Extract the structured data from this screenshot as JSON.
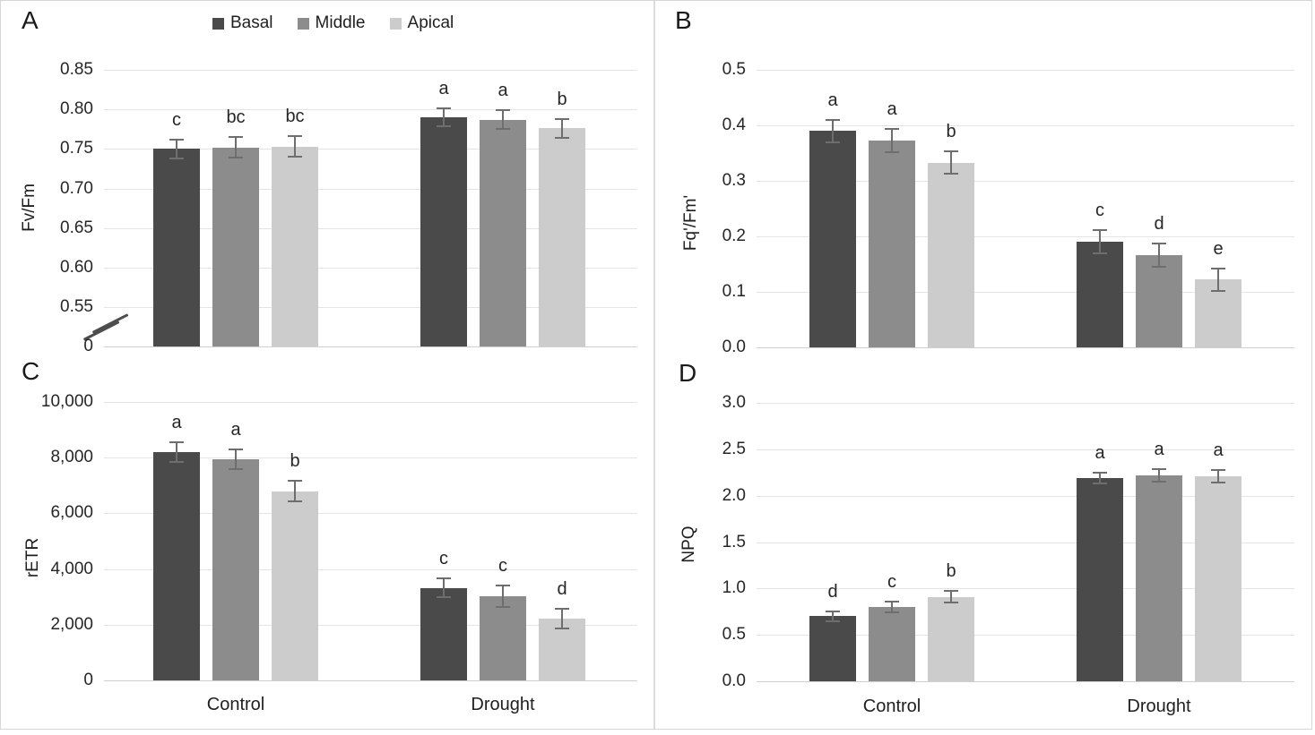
{
  "figure": {
    "legend": {
      "position": "top",
      "items": [
        {
          "label": "Basal",
          "color": "#4a4a4a"
        },
        {
          "label": "Middle",
          "color": "#8c8c8c"
        },
        {
          "label": "Apical",
          "color": "#cccccc"
        }
      ]
    },
    "colors": {
      "gridline": "#e4e4e4",
      "axis_line": "#cfcfcf",
      "error_bar": "#6e6e6e",
      "text": "#1f1f1f",
      "panel_border": "#d6d6d6"
    }
  },
  "chart_data": [
    {
      "id": "A",
      "panel_label": "A",
      "type": "bar",
      "ylabel": "Fv/Fm",
      "categories": [
        "Control",
        "Drought"
      ],
      "show_category_labels": false,
      "axis_break": true,
      "ylim": [
        0.55,
        0.87
      ],
      "yticks": [
        0.85,
        0.8,
        0.75,
        0.7,
        0.65,
        0.6,
        0.55
      ],
      "ytick_labels": [
        "0.85",
        "0.80",
        "0.75",
        "0.70",
        "0.65",
        "0.60",
        "0.55"
      ],
      "zero_tick_label": "0",
      "grid": true,
      "series": [
        {
          "name": "Basal",
          "values": [
            0.75,
            0.79
          ],
          "errors": [
            0.012,
            0.011
          ],
          "letters": [
            "c",
            "a"
          ]
        },
        {
          "name": "Middle",
          "values": [
            0.752,
            0.787
          ],
          "errors": [
            0.013,
            0.012
          ],
          "letters": [
            "bc",
            "a"
          ]
        },
        {
          "name": "Apical",
          "values": [
            0.753,
            0.776
          ],
          "errors": [
            0.013,
            0.012
          ],
          "letters": [
            "bc",
            "b"
          ]
        }
      ]
    },
    {
      "id": "B",
      "panel_label": "B",
      "type": "bar",
      "ylabel": "Fq'/Fm'",
      "categories": [
        "Control",
        "Drought"
      ],
      "show_category_labels": false,
      "axis_break": false,
      "ylim": [
        0,
        0.5
      ],
      "yticks": [
        0.5,
        0.4,
        0.3,
        0.2,
        0.1,
        0.0
      ],
      "ytick_labels": [
        "0.5",
        "0.4",
        "0.3",
        "0.2",
        "0.1",
        "0.0"
      ],
      "grid": true,
      "series": [
        {
          "name": "Basal",
          "values": [
            0.39,
            0.19
          ],
          "errors": [
            0.02,
            0.021
          ],
          "letters": [
            "a",
            "c"
          ]
        },
        {
          "name": "Middle",
          "values": [
            0.373,
            0.166
          ],
          "errors": [
            0.021,
            0.021
          ],
          "letters": [
            "a",
            "d"
          ]
        },
        {
          "name": "Apical",
          "values": [
            0.333,
            0.122
          ],
          "errors": [
            0.02,
            0.02
          ],
          "letters": [
            "b",
            "e"
          ]
        }
      ]
    },
    {
      "id": "C",
      "panel_label": "C",
      "type": "bar",
      "ylabel": "rETR",
      "categories": [
        "Control",
        "Drought"
      ],
      "show_category_labels": true,
      "axis_break": false,
      "ylim": [
        0,
        10000
      ],
      "yticks": [
        10000,
        8000,
        6000,
        4000,
        2000,
        0
      ],
      "ytick_labels": [
        "10,000",
        "8,000",
        "6,000",
        "4,000",
        "2,000",
        "0"
      ],
      "grid": true,
      "series": [
        {
          "name": "Basal",
          "values": [
            8200,
            3320
          ],
          "errors": [
            350,
            330
          ],
          "letters": [
            "a",
            "c"
          ]
        },
        {
          "name": "Middle",
          "values": [
            7950,
            3030
          ],
          "errors": [
            350,
            380
          ],
          "letters": [
            "a",
            "c"
          ]
        },
        {
          "name": "Apical",
          "values": [
            6800,
            2230
          ],
          "errors": [
            380,
            350
          ],
          "letters": [
            "b",
            "d"
          ]
        }
      ]
    },
    {
      "id": "D",
      "panel_label": "D",
      "type": "bar",
      "ylabel": "NPQ",
      "categories": [
        "Control",
        "Drought"
      ],
      "show_category_labels": true,
      "axis_break": false,
      "ylim": [
        0,
        3.0
      ],
      "yticks": [
        3.0,
        2.5,
        2.0,
        1.5,
        1.0,
        0.5,
        0.0
      ],
      "ytick_labels": [
        "3.0",
        "2.5",
        "2.0",
        "1.5",
        "1.0",
        "0.5",
        "0.0"
      ],
      "grid": true,
      "series": [
        {
          "name": "Basal",
          "values": [
            0.7,
            2.19
          ],
          "errors": [
            0.05,
            0.06
          ],
          "letters": [
            "d",
            "a"
          ]
        },
        {
          "name": "Middle",
          "values": [
            0.8,
            2.22
          ],
          "errors": [
            0.06,
            0.07
          ],
          "letters": [
            "c",
            "a"
          ]
        },
        {
          "name": "Apical",
          "values": [
            0.91,
            2.21
          ],
          "errors": [
            0.06,
            0.07
          ],
          "letters": [
            "b",
            "a"
          ]
        }
      ]
    }
  ]
}
